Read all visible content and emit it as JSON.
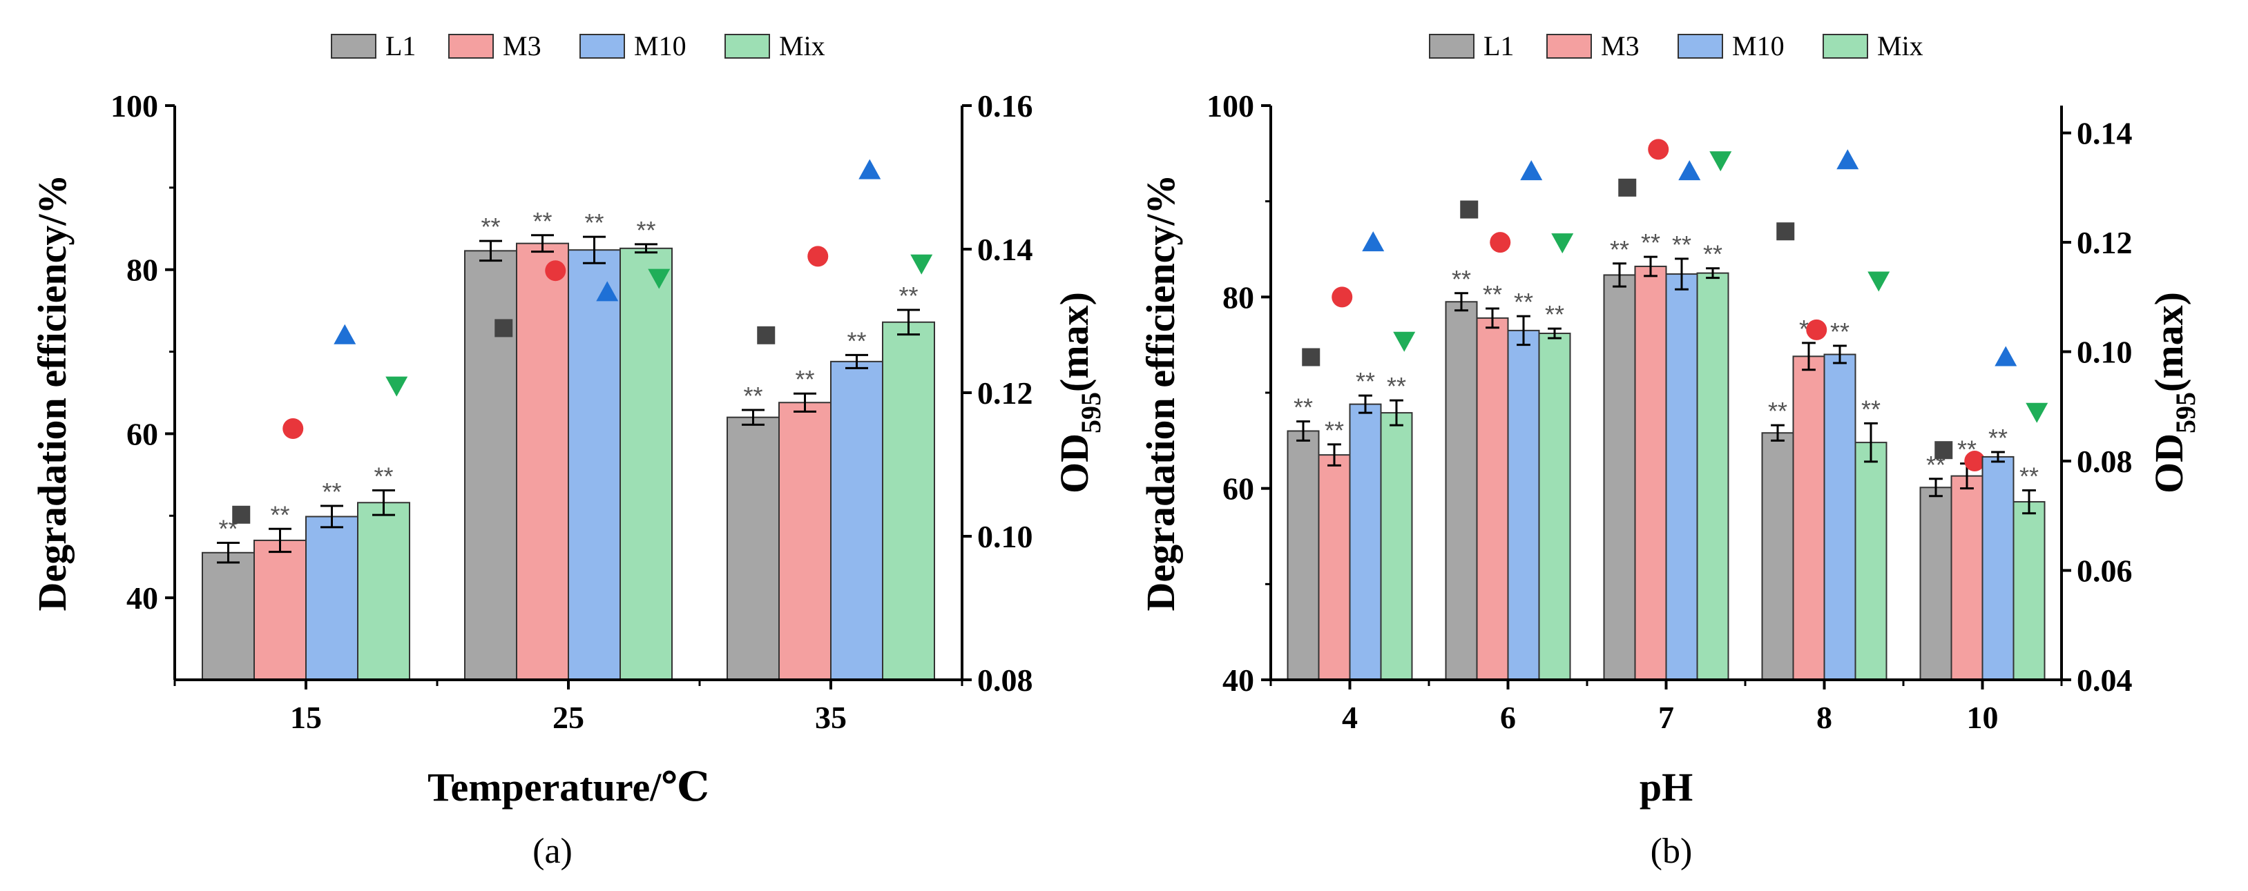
{
  "chart_data": [
    {
      "type": "bar",
      "panel_label": "(a)",
      "categories": [
        "15",
        "25",
        "35"
      ],
      "xlabel": "Temperature/℃",
      "ylabel": "Degradation efficiency/%",
      "y2label": "OD595(max)",
      "y2label_main": "OD",
      "y2label_sub": "595",
      "y2label_tail": "(max)",
      "ylim": [
        30,
        100
      ],
      "yticks": [
        "40",
        "60",
        "80",
        "100"
      ],
      "ytick_values": [
        40,
        60,
        80,
        100
      ],
      "y2lim": [
        0.08,
        0.16
      ],
      "y2ticks": [
        "0.08",
        "0.10",
        "0.12",
        "0.14",
        "0.16"
      ],
      "y2tick_values": [
        0.08,
        0.1,
        0.12,
        0.14,
        0.16
      ],
      "significance_label": "**",
      "series": [
        {
          "name": "L1",
          "color": "#a6a6a6",
          "marker_color": "#444444",
          "marker": "square",
          "values": [
            45.5,
            82.3,
            62.0
          ],
          "errors": [
            1.2,
            1.2,
            0.9
          ],
          "od595": [
            0.103,
            0.129,
            0.128
          ]
        },
        {
          "name": "M3",
          "color": "#f4a0a0",
          "marker_color": "#e8363b",
          "marker": "circle",
          "values": [
            47.0,
            83.2,
            63.8
          ],
          "errors": [
            1.4,
            1.0,
            1.1
          ],
          "od595": [
            0.115,
            0.137,
            0.139
          ]
        },
        {
          "name": "M10",
          "color": "#91b8ee",
          "marker_color": "#1e70d6",
          "marker": "triangle-up",
          "values": [
            49.9,
            82.4,
            68.8
          ],
          "errors": [
            1.3,
            1.6,
            0.8
          ],
          "od595": [
            0.128,
            0.134,
            0.151
          ]
        },
        {
          "name": "Mix",
          "color": "#9ddfb4",
          "marker_color": "#1fae58",
          "marker": "triangle-down",
          "values": [
            51.6,
            82.6,
            73.6
          ],
          "errors": [
            1.5,
            0.5,
            1.5
          ],
          "od595": [
            0.121,
            0.136,
            0.138
          ]
        }
      ]
    },
    {
      "type": "bar",
      "panel_label": "(b)",
      "categories": [
        "4",
        "6",
        "7",
        "8",
        "10"
      ],
      "xlabel": "pH",
      "ylabel": "Degradation efficiency/%",
      "y2label": "OD595(max)",
      "y2label_main": "OD",
      "y2label_sub": "595",
      "y2label_tail": "(max)",
      "ylim": [
        40,
        100
      ],
      "yticks": [
        "40",
        "60",
        "80",
        "100"
      ],
      "ytick_values": [
        40,
        60,
        80,
        100
      ],
      "y2lim": [
        0.04,
        0.145
      ],
      "y2ticks": [
        "0.04",
        "0.06",
        "0.08",
        "0.10",
        "0.12",
        "0.14"
      ],
      "y2tick_values": [
        0.04,
        0.06,
        0.08,
        0.1,
        0.12,
        0.14
      ],
      "significance_label": "**",
      "series": [
        {
          "name": "L1",
          "color": "#a6a6a6",
          "marker_color": "#444444",
          "marker": "square",
          "values": [
            66.0,
            79.5,
            82.3,
            65.8,
            60.1
          ],
          "errors": [
            1.0,
            0.9,
            1.2,
            0.8,
            0.9
          ],
          "od595": [
            0.099,
            0.126,
            0.13,
            0.122,
            0.082
          ]
        },
        {
          "name": "M3",
          "color": "#f4a0a0",
          "marker_color": "#e8363b",
          "marker": "circle",
          "values": [
            63.5,
            77.8,
            83.2,
            73.8,
            61.3
          ],
          "errors": [
            1.1,
            1.0,
            1.0,
            1.4,
            1.3
          ],
          "od595": [
            0.11,
            0.12,
            0.137,
            0.104,
            0.08
          ]
        },
        {
          "name": "M10",
          "color": "#91b8ee",
          "marker_color": "#1e70d6",
          "marker": "triangle-up",
          "values": [
            68.8,
            76.5,
            82.4,
            74.0,
            63.3
          ],
          "errors": [
            0.9,
            1.5,
            1.6,
            0.9,
            0.5
          ],
          "od595": [
            0.12,
            0.133,
            0.133,
            0.135,
            0.099
          ]
        },
        {
          "name": "Mix",
          "color": "#9ddfb4",
          "marker_color": "#1fae58",
          "marker": "triangle-down",
          "values": [
            67.9,
            76.2,
            82.5,
            64.8,
            58.6
          ],
          "errors": [
            1.3,
            0.5,
            0.5,
            2.0,
            1.2
          ],
          "od595": [
            0.102,
            0.12,
            0.135,
            0.113,
            0.089
          ]
        }
      ]
    }
  ]
}
